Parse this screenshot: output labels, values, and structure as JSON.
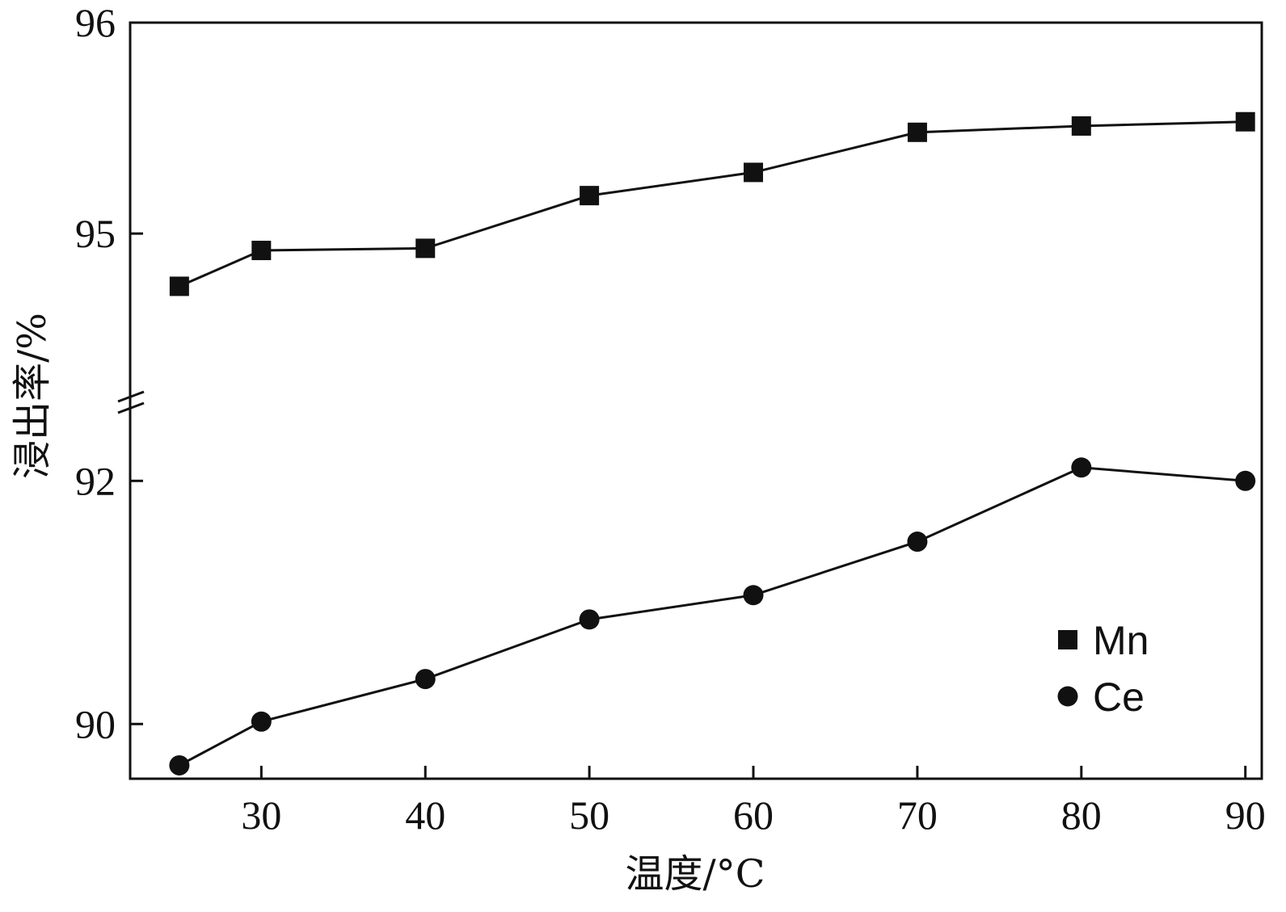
{
  "chart_data": {
    "type": "line",
    "xlabel": "温度/°C",
    "ylabel": "浸出率/%",
    "x": [
      25,
      30,
      40,
      50,
      60,
      70,
      80,
      90
    ],
    "xticks": [
      30,
      40,
      50,
      60,
      70,
      80,
      90
    ],
    "xlim": [
      22,
      91
    ],
    "y_axis_broken": true,
    "ylim_upper_segment": [
      94.25,
      96
    ],
    "ylim_lower_segment": [
      89.55,
      92.6
    ],
    "yticks_upper": [
      95,
      96
    ],
    "yticks_lower": [
      90,
      92
    ],
    "yticks": [
      "96",
      "95",
      "92",
      "90"
    ],
    "legend_position": "lower-right",
    "grid": false,
    "series": [
      {
        "name": "Mn",
        "marker": "square",
        "color": "#111111",
        "values": [
          94.75,
          94.92,
          94.93,
          95.18,
          95.29,
          95.48,
          95.51,
          95.53
        ]
      },
      {
        "name": "Ce",
        "marker": "circle",
        "color": "#111111",
        "values": [
          89.66,
          90.02,
          90.37,
          90.86,
          91.06,
          91.5,
          92.11,
          92.0
        ]
      }
    ]
  }
}
